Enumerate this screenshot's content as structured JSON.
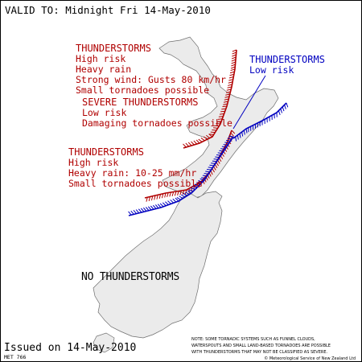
{
  "header": {
    "valid_text": "VALID TO: Midnight Fri 14-May-2010"
  },
  "warnings": [
    {
      "lines": [
        "THUNDERSTORMS",
        "High risk",
        "Heavy rain",
        "Strong wind: Gusts 80 km/hr",
        "Small tornadoes possible"
      ],
      "color": "#b00000"
    },
    {
      "lines": [
        "SEVERE THUNDERSTORMS",
        "Low risk",
        "Damaging tornadoes possible"
      ],
      "color": "#b00000"
    },
    {
      "lines": [
        "THUNDERSTORMS",
        "High risk",
        "Heavy rain: 10-25 mm/hr",
        "Small tornadoes possible"
      ],
      "color": "#b00000"
    },
    {
      "lines": [
        "THUNDERSTORMS",
        "Low risk"
      ],
      "color": "#0000c0"
    }
  ],
  "south_label": "NO THUNDERSTORMS",
  "footer": {
    "issued": "Issued on 14-May-2010",
    "code": "MET 766",
    "note": [
      "NOTE: SOME TORNADIC SYSTEMS SUCH AS FUNNEL CLOUDS,",
      "WATERSPOUTS AND SMALL LAND-BASED TORNADOES ARE POSSIBLE",
      "WITH THUNDERSTORMS THAT MAY NOT BE CLASSIFIED AS SEVERE.",
      "© Meteorological Service of New Zealand Ltd"
    ]
  },
  "colors": {
    "high_risk": "#b00000",
    "low_risk": "#0000c0",
    "land": "#ebebeb",
    "coast": "#6e6e6e"
  }
}
